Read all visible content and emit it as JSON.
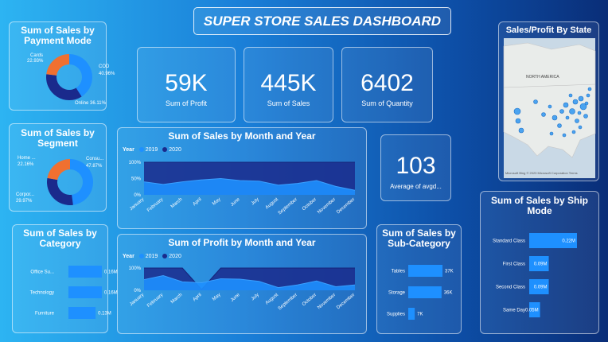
{
  "title": "SUPER STORE SALES DASHBOARD",
  "kpis": [
    {
      "value": "59K",
      "label": "Sum of Profit"
    },
    {
      "value": "445K",
      "label": "Sum of Sales"
    },
    {
      "value": "6402",
      "label": "Sum of Quantity"
    },
    {
      "value": "103",
      "label": "Average of avgd..."
    }
  ],
  "payment": {
    "title": "Sum of Sales by Payment Mode",
    "labels": {
      "cards": "Cards",
      "cards_pct": "22.93%",
      "cod": "COD",
      "cod_pct": "40.96%",
      "online": "Online 36.11%"
    }
  },
  "segment": {
    "title": "Sum of Sales by Segment",
    "labels": {
      "home": "Home ...",
      "home_pct": "22.16%",
      "consu": "Consu...",
      "consu_pct": "47.87%",
      "corpor": "Corpor...",
      "corpor_pct": "29.97%"
    }
  },
  "category": {
    "title": "Sum of Sales by Category"
  },
  "monthly_sales": {
    "title": "Sum of Sales by Month and Year",
    "legend_title": "Year",
    "legend": [
      "2019",
      "2020"
    ]
  },
  "monthly_profit": {
    "title": "Sum of Profit by Month and Year",
    "legend_title": "Year",
    "legend": [
      "2019",
      "2020"
    ]
  },
  "subcat": {
    "title": "Sum of Sales by Sub-Category"
  },
  "shipmode": {
    "title": "Sum of Sales by Ship Mode"
  },
  "map": {
    "title": "Sales/Profit By State",
    "region_label": "NORTH AMERICA",
    "attribution": "Microsoft Bing  © 2023 Microsoft Corporation  Terms"
  },
  "colors": {
    "light_blue": "#1e90ff",
    "dark_navy": "#1a2a8c",
    "orange": "#f07030",
    "bar_blue": "#1e90ff"
  },
  "chart_data": [
    {
      "type": "pie",
      "title": "Sum of Sales by Payment Mode",
      "categories": [
        "COD",
        "Online",
        "Cards"
      ],
      "values": [
        40.96,
        36.11,
        22.93
      ]
    },
    {
      "type": "pie",
      "title": "Sum of Sales by Segment",
      "categories": [
        "Consu...",
        "Corpor...",
        "Home ..."
      ],
      "values": [
        47.87,
        29.97,
        22.16
      ]
    },
    {
      "type": "bar",
      "title": "Sum of Sales by Category",
      "categories": [
        "Office Su...",
        "Technology",
        "Furniture"
      ],
      "values": [
        0.16,
        0.16,
        0.13
      ],
      "value_labels": [
        "0.16M",
        "0.16M",
        "0.13M"
      ]
    },
    {
      "type": "bar",
      "title": "Sum of Sales by Sub-Category",
      "categories": [
        "Tables",
        "Storage",
        "Supplies"
      ],
      "values": [
        37,
        36,
        7
      ],
      "value_labels": [
        "37K",
        "36K",
        "7K"
      ]
    },
    {
      "type": "bar",
      "title": "Sum of Sales by Ship Mode",
      "categories": [
        "Standard Class",
        "First Class",
        "Second Class",
        "Same Day"
      ],
      "values": [
        0.22,
        0.09,
        0.09,
        0.05
      ],
      "value_labels": [
        "0.22M",
        "0.09M",
        "0.09M",
        "0.05M"
      ]
    },
    {
      "type": "area",
      "title": "Sum of Sales by Month and Year",
      "x": [
        "January",
        "February",
        "March",
        "April",
        "May",
        "June",
        "July",
        "August",
        "September",
        "October",
        "November",
        "December"
      ],
      "yticks": [
        "100%",
        "50%",
        "0%"
      ],
      "series": [
        {
          "name": "2019",
          "values": [
            0.4,
            0.32,
            0.4,
            0.46,
            0.5,
            0.44,
            0.42,
            0.3,
            0.35,
            0.44,
            0.26,
            0.14
          ]
        },
        {
          "name": "2020",
          "values": [
            1.0,
            1.0,
            1.0,
            1.0,
            1.0,
            1.0,
            1.0,
            1.0,
            1.0,
            1.0,
            1.0,
            1.0
          ]
        }
      ]
    },
    {
      "type": "area",
      "title": "Sum of Profit by Month and Year",
      "x": [
        "January",
        "February",
        "March",
        "April",
        "May",
        "June",
        "July",
        "August",
        "September",
        "October",
        "November",
        "December"
      ],
      "yticks": [
        "100%",
        "0%"
      ],
      "series": [
        {
          "name": "2019",
          "values": [
            0.48,
            0.66,
            0.38,
            0.34,
            0.52,
            0.5,
            0.4,
            0.12,
            0.24,
            0.42,
            0.16,
            0.24
          ]
        },
        {
          "name": "2020",
          "values": [
            1.0,
            1.0,
            1.0,
            0.04,
            1.0,
            1.0,
            1.0,
            1.0,
            1.0,
            1.0,
            1.0,
            1.0
          ]
        }
      ]
    }
  ]
}
